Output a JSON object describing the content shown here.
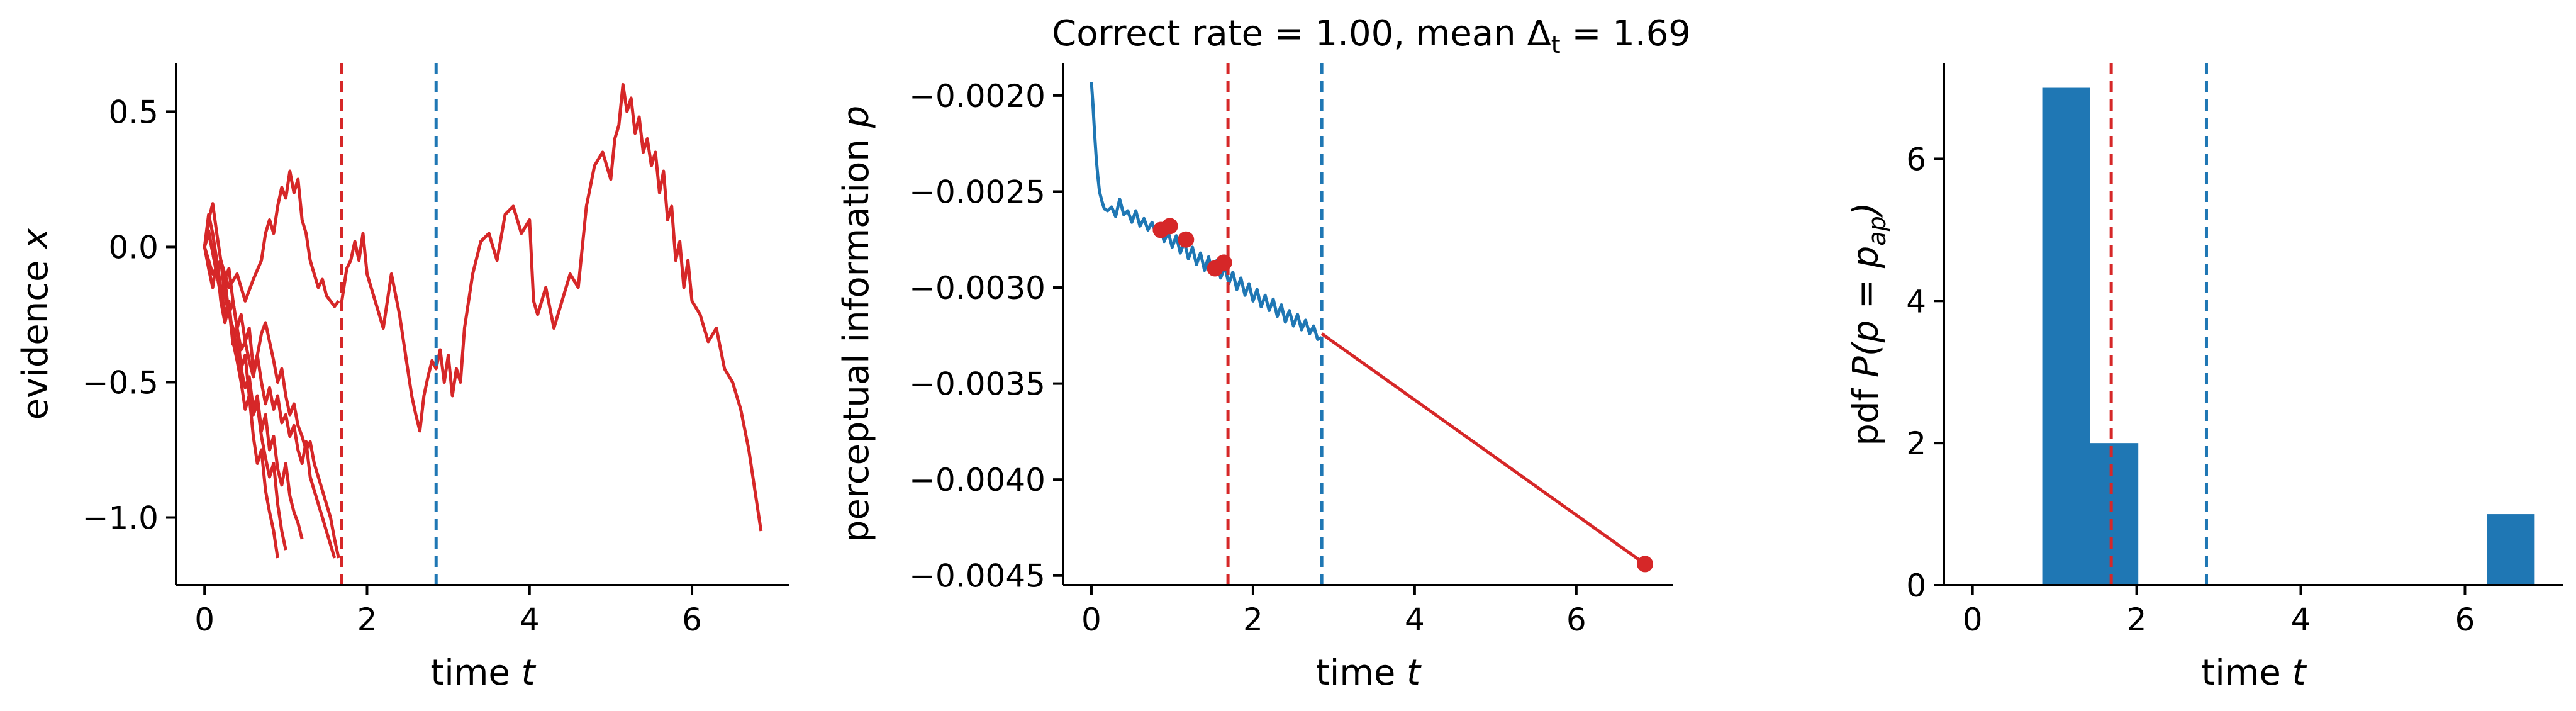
{
  "figure": {
    "title": "Correct rate = 1.00, mean Δ",
    "title_sub": "t",
    "title_tail": " = 1.69"
  },
  "colors": {
    "red": "#d62728",
    "blue": "#1f77b4",
    "axis": "#000000"
  },
  "chart_data": [
    {
      "type": "line",
      "name": "evidence",
      "xlabel": "time",
      "xlabel_var": "t",
      "ylabel": "evidence",
      "ylabel_var": "x",
      "xlim": [
        -0.35,
        7.2
      ],
      "ylim": [
        -1.25,
        0.68
      ],
      "xticks": [
        0,
        2,
        4,
        6
      ],
      "xtick_labels": [
        "0",
        "2",
        "4",
        "6"
      ],
      "yticks": [
        -1.0,
        -0.5,
        0.0,
        0.5
      ],
      "ytick_labels": [
        "−1.0",
        "−0.5",
        "0.0",
        "0.5"
      ],
      "vlines": [
        {
          "x": 1.69,
          "color": "red"
        },
        {
          "x": 2.85,
          "color": "blue"
        }
      ],
      "series": [
        {
          "color": "red",
          "x": [
            0,
            0.05,
            0.1,
            0.15,
            0.2,
            0.25,
            0.3,
            0.35,
            0.4,
            0.45,
            0.5,
            0.55,
            0.6,
            0.65,
            0.7,
            0.75,
            0.8,
            0.85,
            0.9,
            0.95,
            1.0
          ],
          "y": [
            0,
            0.05,
            -0.02,
            -0.1,
            -0.18,
            -0.12,
            -0.25,
            -0.3,
            -0.38,
            -0.45,
            -0.4,
            -0.55,
            -0.62,
            -0.58,
            -0.7,
            -0.78,
            -0.85,
            -0.8,
            -0.95,
            -1.05,
            -1.12
          ]
        },
        {
          "color": "red",
          "x": [
            0,
            0.05,
            0.1,
            0.15,
            0.2,
            0.25,
            0.3,
            0.35,
            0.4,
            0.45,
            0.5,
            0.55,
            0.6,
            0.65,
            0.7,
            0.75,
            0.8,
            0.85,
            0.9
          ],
          "y": [
            0,
            0.12,
            0.05,
            -0.05,
            -0.15,
            -0.25,
            -0.2,
            -0.35,
            -0.42,
            -0.5,
            -0.6,
            -0.55,
            -0.7,
            -0.8,
            -0.75,
            -0.9,
            -0.98,
            -1.05,
            -1.15
          ]
        },
        {
          "color": "red",
          "x": [
            0,
            0.05,
            0.1,
            0.15,
            0.2,
            0.25,
            0.3,
            0.35,
            0.4,
            0.45,
            0.5,
            0.55,
            0.6,
            0.65,
            0.7,
            0.75,
            0.8,
            0.85,
            0.9,
            0.95,
            1.0,
            1.05,
            1.1,
            1.15,
            1.2
          ],
          "y": [
            0,
            -0.08,
            -0.15,
            -0.05,
            -0.2,
            -0.28,
            -0.22,
            -0.36,
            -0.3,
            -0.45,
            -0.52,
            -0.48,
            -0.6,
            -0.55,
            -0.68,
            -0.62,
            -0.75,
            -0.7,
            -0.82,
            -0.88,
            -0.8,
            -0.92,
            -0.98,
            -1.02,
            -1.08
          ]
        },
        {
          "color": "red",
          "x": [
            0,
            0.05,
            0.1,
            0.15,
            0.2,
            0.25,
            0.3,
            0.35,
            0.4,
            0.45,
            0.5,
            0.55,
            0.6,
            0.65,
            0.7,
            0.75,
            0.8,
            0.85,
            0.9,
            0.95,
            1.0,
            1.05,
            1.1,
            1.15,
            1.2,
            1.25,
            1.3,
            1.35,
            1.4,
            1.45,
            1.5,
            1.55,
            1.6,
            1.65
          ],
          "y": [
            0,
            0.1,
            0.16,
            0.05,
            -0.05,
            -0.12,
            -0.08,
            -0.2,
            -0.3,
            -0.25,
            -0.35,
            -0.3,
            -0.45,
            -0.4,
            -0.32,
            -0.28,
            -0.35,
            -0.42,
            -0.5,
            -0.45,
            -0.55,
            -0.62,
            -0.58,
            -0.66,
            -0.7,
            -0.75,
            -0.72,
            -0.8,
            -0.85,
            -0.9,
            -0.95,
            -1.0,
            -1.08,
            -1.15
          ]
        },
        {
          "color": "red",
          "x": [
            0,
            0.05,
            0.1,
            0.15,
            0.2,
            0.25,
            0.3,
            0.35,
            0.4,
            0.45,
            0.5,
            0.55,
            0.6,
            0.65,
            0.7,
            0.75,
            0.8,
            0.85,
            0.9,
            0.95,
            1.0,
            1.05,
            1.1,
            1.15,
            1.2,
            1.25,
            1.3,
            1.35,
            1.4,
            1.45,
            1.5,
            1.55,
            1.6
          ],
          "y": [
            0,
            0.06,
            -0.02,
            -0.1,
            -0.05,
            -0.18,
            -0.25,
            -0.2,
            -0.3,
            -0.38,
            -0.35,
            -0.42,
            -0.48,
            -0.4,
            -0.5,
            -0.58,
            -0.52,
            -0.6,
            -0.55,
            -0.65,
            -0.62,
            -0.7,
            -0.66,
            -0.75,
            -0.8,
            -0.72,
            -0.85,
            -0.9,
            -0.95,
            -1.0,
            -1.05,
            -1.1,
            -1.15
          ]
        },
        {
          "color": "red",
          "x": [
            0,
            0.1,
            0.2,
            0.3,
            0.4,
            0.5,
            0.6,
            0.7,
            0.75,
            0.8,
            0.85,
            0.9,
            0.95,
            1.0,
            1.05,
            1.1,
            1.15,
            1.2,
            1.25,
            1.3,
            1.35,
            1.4,
            1.45,
            1.5,
            1.55,
            1.6,
            1.65
          ],
          "y": [
            0,
            -0.1,
            -0.05,
            -0.15,
            -0.1,
            -0.2,
            -0.12,
            -0.05,
            0.05,
            0.1,
            0.05,
            0.15,
            0.22,
            0.18,
            0.28,
            0.2,
            0.25,
            0.1,
            0.05,
            -0.05,
            -0.1,
            -0.15,
            -0.12,
            -0.18,
            -0.2,
            -0.22,
            -0.2
          ]
        },
        {
          "color": "red",
          "x": [
            1.69,
            1.75,
            1.8,
            1.85,
            1.9,
            1.95,
            2.0,
            2.1,
            2.2,
            2.3,
            2.4,
            2.5,
            2.55,
            2.6,
            2.65,
            2.7,
            2.75,
            2.8,
            2.85,
            2.9,
            2.95,
            3.0,
            3.05,
            3.1,
            3.15,
            3.2,
            3.3,
            3.4,
            3.5,
            3.6,
            3.7,
            3.8,
            3.9,
            4.0,
            4.05,
            4.1,
            4.2,
            4.3,
            4.4,
            4.5,
            4.6,
            4.7,
            4.8,
            4.9,
            5.0,
            5.05,
            5.1,
            5.15,
            5.2,
            5.25,
            5.3,
            5.35,
            5.4,
            5.45,
            5.5,
            5.55,
            5.6,
            5.65,
            5.7,
            5.75,
            5.8,
            5.85,
            5.9,
            5.95,
            6.0,
            6.1,
            6.2,
            6.3,
            6.4,
            6.5,
            6.6,
            6.7,
            6.8,
            6.85
          ],
          "y": [
            -0.2,
            -0.08,
            -0.05,
            0.02,
            -0.05,
            0.05,
            -0.1,
            -0.2,
            -0.3,
            -0.1,
            -0.25,
            -0.45,
            -0.55,
            -0.62,
            -0.68,
            -0.55,
            -0.48,
            -0.42,
            -0.45,
            -0.38,
            -0.5,
            -0.4,
            -0.55,
            -0.45,
            -0.5,
            -0.3,
            -0.1,
            0.02,
            0.05,
            -0.05,
            0.12,
            0.15,
            0.05,
            0.1,
            -0.2,
            -0.25,
            -0.15,
            -0.3,
            -0.2,
            -0.1,
            -0.15,
            0.15,
            0.3,
            0.35,
            0.25,
            0.4,
            0.45,
            0.6,
            0.5,
            0.55,
            0.42,
            0.48,
            0.35,
            0.4,
            0.3,
            0.35,
            0.2,
            0.28,
            0.1,
            0.15,
            -0.05,
            0.02,
            -0.15,
            -0.05,
            -0.2,
            -0.25,
            -0.35,
            -0.3,
            -0.45,
            -0.5,
            -0.6,
            -0.75,
            -0.95,
            -1.05
          ]
        }
      ]
    },
    {
      "type": "line",
      "name": "perceptual-information",
      "xlabel": "time",
      "xlabel_var": "t",
      "ylabel": "perceptual information",
      "ylabel_var": "p",
      "xlim": [
        -0.35,
        7.2
      ],
      "ylim": [
        -0.00455,
        -0.00183
      ],
      "xticks": [
        0,
        2,
        4,
        6
      ],
      "xtick_labels": [
        "0",
        "2",
        "4",
        "6"
      ],
      "yticks": [
        -0.0045,
        -0.004,
        -0.0035,
        -0.003,
        -0.0025,
        -0.002
      ],
      "ytick_labels": [
        "−0.0045",
        "−0.0040",
        "−0.0035",
        "−0.0030",
        "−0.0025",
        "−0.0020"
      ],
      "vlines": [
        {
          "x": 1.69,
          "color": "red"
        },
        {
          "x": 2.85,
          "color": "blue"
        }
      ],
      "series": [
        {
          "color": "blue",
          "x": [
            0,
            0.02,
            0.04,
            0.06,
            0.08,
            0.1,
            0.13,
            0.16,
            0.2,
            0.25,
            0.3,
            0.35,
            0.4,
            0.45,
            0.5,
            0.55,
            0.6,
            0.65,
            0.7,
            0.75,
            0.8,
            0.85,
            0.9,
            0.95,
            1.0,
            1.05,
            1.1,
            1.15,
            1.2,
            1.25,
            1.3,
            1.35,
            1.4,
            1.45,
            1.5,
            1.55,
            1.6,
            1.65,
            1.7,
            1.75,
            1.8,
            1.85,
            1.9,
            1.95,
            2.0,
            2.05,
            2.1,
            2.15,
            2.2,
            2.25,
            2.3,
            2.35,
            2.4,
            2.45,
            2.5,
            2.55,
            2.6,
            2.65,
            2.7,
            2.75,
            2.8,
            2.85
          ],
          "y": [
            -0.00193,
            -0.00205,
            -0.0022,
            -0.00233,
            -0.00242,
            -0.0025,
            -0.00255,
            -0.00259,
            -0.0026,
            -0.00258,
            -0.00263,
            -0.00254,
            -0.00262,
            -0.0026,
            -0.00266,
            -0.0026,
            -0.00268,
            -0.00264,
            -0.0027,
            -0.00266,
            -0.00272,
            -0.00268,
            -0.00276,
            -0.00271,
            -0.00279,
            -0.00273,
            -0.00282,
            -0.00276,
            -0.00285,
            -0.00279,
            -0.00288,
            -0.00282,
            -0.00291,
            -0.00284,
            -0.00293,
            -0.00286,
            -0.00295,
            -0.00289,
            -0.00298,
            -0.00292,
            -0.00301,
            -0.00295,
            -0.00304,
            -0.00298,
            -0.00307,
            -0.00301,
            -0.0031,
            -0.00304,
            -0.00312,
            -0.00306,
            -0.00315,
            -0.00309,
            -0.00318,
            -0.00312,
            -0.0032,
            -0.00314,
            -0.00322,
            -0.00317,
            -0.00324,
            -0.0032,
            -0.00327,
            -0.00326
          ]
        },
        {
          "color": "red",
          "x": [
            2.85,
            6.85
          ],
          "y": [
            -0.00324,
            -0.00444
          ]
        }
      ],
      "points": [
        {
          "x": 0.86,
          "y": -0.0027,
          "color": "red"
        },
        {
          "x": 0.97,
          "y": -0.00268,
          "color": "red"
        },
        {
          "x": 1.17,
          "y": -0.00275,
          "color": "red"
        },
        {
          "x": 1.53,
          "y": -0.0029,
          "color": "red"
        },
        {
          "x": 1.64,
          "y": -0.00287,
          "color": "red"
        },
        {
          "x": 6.85,
          "y": -0.00444,
          "color": "red"
        }
      ]
    },
    {
      "type": "bar",
      "name": "histogram",
      "xlabel": "time",
      "xlabel_var": "t",
      "ylabel_prefix": "pdf",
      "ylabel_math": "P(p = p",
      "ylabel_sub": "ap",
      "ylabel_close": ")",
      "xlim": [
        -0.35,
        7.2
      ],
      "ylim": [
        0,
        7.35
      ],
      "xticks": [
        0,
        2,
        4,
        6
      ],
      "xtick_labels": [
        "0",
        "2",
        "4",
        "6"
      ],
      "yticks": [
        0,
        2,
        4,
        6
      ],
      "ytick_labels": [
        "0",
        "2",
        "4",
        "6"
      ],
      "vlines": [
        {
          "x": 1.69,
          "color": "red"
        },
        {
          "x": 2.85,
          "color": "blue"
        }
      ],
      "bins": [
        {
          "x0": 0.85,
          "x1": 1.43,
          "value": 7,
          "color": "blue"
        },
        {
          "x0": 1.43,
          "x1": 2.02,
          "value": 2,
          "color": "blue"
        },
        {
          "x0": 6.27,
          "x1": 6.85,
          "value": 1,
          "color": "blue"
        }
      ]
    }
  ]
}
